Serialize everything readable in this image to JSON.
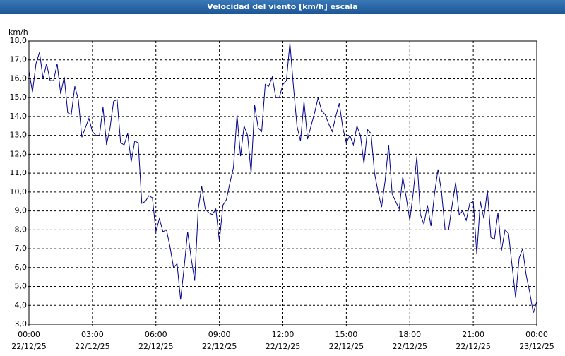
{
  "chart_data": {
    "type": "line",
    "title": "Velocidad del viento [km/h] escala",
    "y_label": "km/h",
    "xlim": [
      0,
      1440
    ],
    "xticks": [
      {
        "value": 0,
        "label": "00:00",
        "date": "22/12/25"
      },
      {
        "value": 180,
        "label": "03:00",
        "date": "22/12/25"
      },
      {
        "value": 360,
        "label": "06:00",
        "date": "22/12/25"
      },
      {
        "value": 540,
        "label": "09:00",
        "date": "22/12/25"
      },
      {
        "value": 720,
        "label": "12:00",
        "date": "22/12/25"
      },
      {
        "value": 900,
        "label": "15:00",
        "date": "22/12/25"
      },
      {
        "value": 1080,
        "label": "18:00",
        "date": "22/12/25"
      },
      {
        "value": 1260,
        "label": "21:00",
        "date": "22/12/25"
      },
      {
        "value": 1440,
        "label": "00:00",
        "date": "23/12/25"
      }
    ],
    "ylim": [
      3,
      18
    ],
    "yticks": [
      {
        "value": 3,
        "label": "3,0"
      },
      {
        "value": 4,
        "label": "4,0"
      },
      {
        "value": 5,
        "label": "5,0"
      },
      {
        "value": 6,
        "label": "6,0"
      },
      {
        "value": 7,
        "label": "7,0"
      },
      {
        "value": 8,
        "label": "8,0"
      },
      {
        "value": 9,
        "label": "9,0"
      },
      {
        "value": 10,
        "label": "10,0"
      },
      {
        "value": 11,
        "label": "11,0"
      },
      {
        "value": 12,
        "label": "12,0"
      },
      {
        "value": 13,
        "label": "13,0"
      },
      {
        "value": 14,
        "label": "14,0"
      },
      {
        "value": 15,
        "label": "15,0"
      },
      {
        "value": 16,
        "label": "16,0"
      },
      {
        "value": 17,
        "label": "17,0"
      },
      {
        "value": 18,
        "label": "18,0"
      }
    ],
    "grid": true,
    "series": [
      {
        "color": "#00008c",
        "x": [
          0,
          10,
          20,
          30,
          40,
          50,
          60,
          70,
          80,
          90,
          100,
          110,
          120,
          130,
          140,
          150,
          160,
          170,
          180,
          190,
          200,
          210,
          220,
          230,
          240,
          250,
          260,
          270,
          280,
          290,
          300,
          310,
          320,
          330,
          340,
          350,
          360,
          370,
          380,
          390,
          400,
          410,
          420,
          430,
          440,
          450,
          460,
          470,
          480,
          490,
          500,
          510,
          520,
          530,
          540,
          550,
          560,
          570,
          580,
          590,
          600,
          610,
          620,
          630,
          640,
          650,
          660,
          670,
          680,
          690,
          700,
          710,
          720,
          730,
          740,
          750,
          760,
          770,
          780,
          790,
          800,
          810,
          820,
          830,
          840,
          850,
          860,
          870,
          880,
          890,
          900,
          910,
          920,
          930,
          940,
          950,
          960,
          970,
          980,
          990,
          1000,
          1010,
          1020,
          1030,
          1040,
          1050,
          1060,
          1070,
          1080,
          1090,
          1100,
          1110,
          1120,
          1130,
          1140,
          1150,
          1160,
          1170,
          1180,
          1190,
          1200,
          1210,
          1220,
          1230,
          1240,
          1250,
          1260,
          1270,
          1280,
          1290,
          1300,
          1310,
          1320,
          1330,
          1340,
          1350,
          1360,
          1370,
          1380,
          1390,
          1400,
          1410,
          1420,
          1430,
          1440
        ],
        "values": [
          16.4,
          15.3,
          16.8,
          17.4,
          16.0,
          16.8,
          15.9,
          15.9,
          16.8,
          15.2,
          16.1,
          14.2,
          14.1,
          15.6,
          14.9,
          12.9,
          13.4,
          13.9,
          13.2,
          13.0,
          13.0,
          14.5,
          12.5,
          13.4,
          14.8,
          14.9,
          12.6,
          12.5,
          13.1,
          11.6,
          12.7,
          12.6,
          9.4,
          9.5,
          9.8,
          9.7,
          7.9,
          8.6,
          7.9,
          8.0,
          7.1,
          6.0,
          6.2,
          4.3,
          6.0,
          7.9,
          6.5,
          5.3,
          9.1,
          10.3,
          9.1,
          8.9,
          8.8,
          9.1,
          7.4,
          9.3,
          9.6,
          10.5,
          11.3,
          14.1,
          11.9,
          13.5,
          13.0,
          11.0,
          14.6,
          13.4,
          13.2,
          15.7,
          15.6,
          16.1,
          15.0,
          15.0,
          15.7,
          15.9,
          17.9,
          15.6,
          13.5,
          12.7,
          14.8,
          12.8,
          13.5,
          14.2,
          15.0,
          14.3,
          14.1,
          13.6,
          13.2,
          14.0,
          14.7,
          13.4,
          12.6,
          13.0,
          12.5,
          13.5,
          13.0,
          11.5,
          13.3,
          13.1,
          11.0,
          10.0,
          9.2,
          10.6,
          12.5,
          9.9,
          9.5,
          9.1,
          10.8,
          9.7,
          8.5,
          10.0,
          11.9,
          8.8,
          8.3,
          9.3,
          8.2,
          9.9,
          11.2,
          10.0,
          8.0,
          8.0,
          9.3,
          10.5,
          8.8,
          9.0,
          8.5,
          9.4,
          9.5,
          6.7,
          9.5,
          8.6,
          10.1,
          7.6,
          7.5,
          8.9,
          6.9,
          8.0,
          7.8,
          6.1,
          4.4,
          6.5,
          7.0,
          5.6,
          4.7,
          3.6,
          4.2
        ]
      }
    ]
  }
}
